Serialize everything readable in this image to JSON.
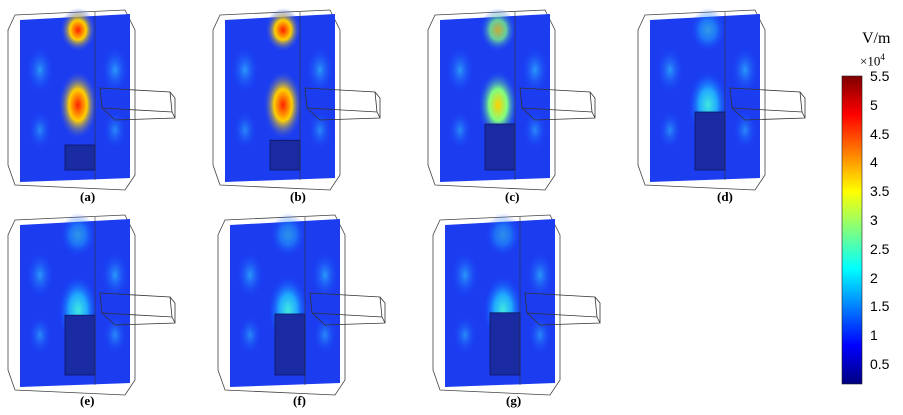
{
  "panels": [
    {
      "label": "(a)",
      "intensity": 1.0
    },
    {
      "label": "(b)",
      "intensity": 0.92
    },
    {
      "label": "(c)",
      "intensity": 0.65
    },
    {
      "label": "(d)",
      "intensity": 0.45
    },
    {
      "label": "(e)",
      "intensity": 0.42
    },
    {
      "label": "(f)",
      "intensity": 0.4
    },
    {
      "label": "(g)",
      "intensity": 0.38
    }
  ],
  "colorbar": {
    "unit": "V/m",
    "multiplier": "×10",
    "exponent": "4",
    "ticks": [
      "5.5",
      "5",
      "4.5",
      "4",
      "3.5",
      "3",
      "2.5",
      "2",
      "1.5",
      "1",
      "0.5"
    ]
  }
}
